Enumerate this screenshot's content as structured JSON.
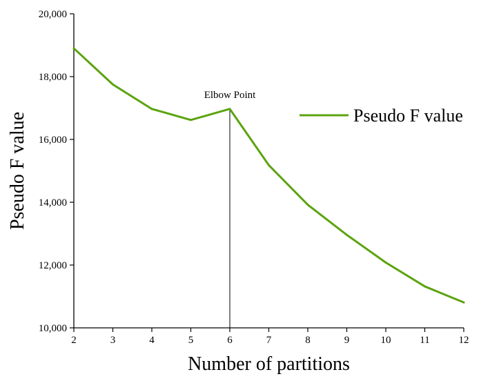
{
  "chart_data": {
    "type": "line",
    "title": "",
    "xlabel": "Number of partitions",
    "ylabel": "Pseudo F value",
    "xlim": [
      2,
      12
    ],
    "ylim": [
      10000,
      20000
    ],
    "x_ticks": [
      2,
      3,
      4,
      5,
      6,
      7,
      8,
      9,
      10,
      11,
      12
    ],
    "y_ticks": [
      10000,
      12000,
      14000,
      16000,
      18000,
      20000
    ],
    "y_tick_labels": [
      "10,000",
      "12,000",
      "14,000",
      "16,000",
      "18,000",
      "20,000"
    ],
    "grid": false,
    "legend_position": "top-right",
    "series": [
      {
        "name": "Pseudo F value",
        "color": "#5ba30f",
        "x": [
          2,
          3,
          4,
          5,
          6,
          7,
          8,
          9,
          10,
          11,
          12
        ],
        "y": [
          18900,
          17750,
          16970,
          16620,
          16970,
          15180,
          13920,
          12960,
          12080,
          11320,
          10810
        ]
      }
    ],
    "annotations": [
      {
        "text": "Elbow Point",
        "x": 6,
        "y": 16970
      }
    ]
  }
}
